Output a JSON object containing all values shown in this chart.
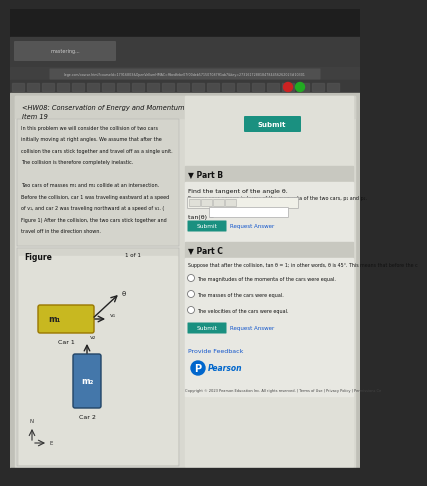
{
  "bg_outer": "#2a2a2a",
  "bg_toolbar": "#383838",
  "bg_page": "#c8c8c0",
  "bg_left_panel": "#d0d0c8",
  "bg_right_panel": "#e8e8e2",
  "bg_white": "#ffffff",
  "title": "<HW08: Conservation of Energy and Momentum",
  "item": "Item 19",
  "problem_text_lines": [
    "In this problem we will consider the collision of two cars",
    "initially moving at right angles. We assume that after the",
    "collision the cars stick together and travel off as a single unit.",
    "The collision is therefore completely inelastic.",
    "",
    "Two cars of masses m₁ and m₂ collide at an intersection.",
    "Before the collision, car 1 was traveling eastward at a speed",
    "of v₁, and car 2 was traveling northward at a speed of v₂. (",
    "Figure 1) After the collision, the two cars stick together and",
    "travel off in the direction shown."
  ],
  "figure_label": "Figure",
  "figure_nav": "1 of 1",
  "car1_label": "m₁",
  "car1_bottom": "Car 1",
  "car2_label": "m₂",
  "car2_bottom": "Car 2",
  "part_b_title": "Part B",
  "part_b_collapse": "▼",
  "part_b_instruction": "Find the tangent of the angle θ.",
  "part_b_subtext": "Express your answer in terms of the momenta of the two cars, p₁ and p₂.",
  "tan_label": "tan(θ) =",
  "submit_label": "Submit",
  "request_answer": "Request Answer",
  "part_c_title": "Part C",
  "part_c_collapse": "▼",
  "part_c_text": "Suppose that after the collision, tan θ = 1; in other words, θ is 45°. This means that before the c",
  "options": [
    "The magnitudes of the momenta of the cars were equal.",
    "The masses of the cars were equal.",
    "The velocities of the cars were equal."
  ],
  "provide_feedback": "Provide Feedback",
  "pearson_label": "Pearson",
  "copyright": "Copyright © 2023 Pearson Education Inc. All rights reserved. | Terms of Use | Privacy Policy | Permissions Ce",
  "url_bar": "llege.com/course.html?courseId=17916803&OpenVellumHMAC=ffbedfebe07f00deb571507087ff1ab7&key=2731617288184784456262023#10301",
  "car1_color": "#c8b820",
  "car2_color": "#4477aa",
  "teal_btn": "#1a9080",
  "text_dark": "#111111",
  "text_medium": "#444444",
  "text_blue": "#1155cc"
}
